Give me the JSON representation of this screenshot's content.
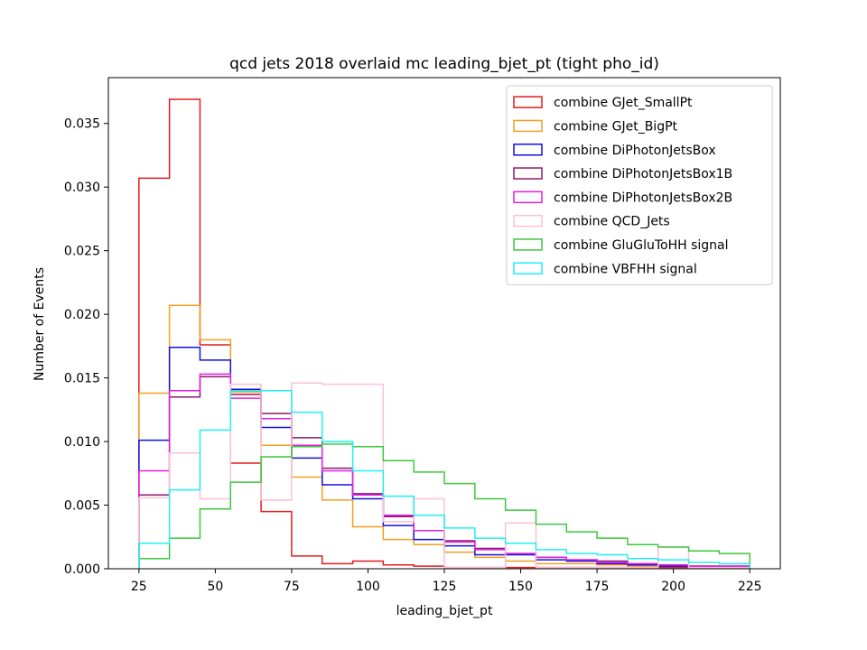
{
  "chart_data": {
    "type": "histogram-step",
    "title": "qcd jets 2018 overlaid mc leading_bjet_pt (tight pho_id)",
    "xlabel": "leading_bjet_pt",
    "ylabel": "Number of Events",
    "xlim": [
      15,
      235
    ],
    "ylim": [
      0,
      0.0386
    ],
    "xticks": [
      25,
      50,
      75,
      100,
      125,
      150,
      175,
      200,
      225
    ],
    "yticks": [
      0.0,
      0.005,
      0.01,
      0.015,
      0.02,
      0.025,
      0.03,
      0.035
    ],
    "yticks_labels": [
      "0.000",
      "0.005",
      "0.010",
      "0.015",
      "0.020",
      "0.025",
      "0.030",
      "0.035"
    ],
    "bin_edges": [
      25,
      35,
      45,
      55,
      65,
      75,
      85,
      95,
      105,
      115,
      125,
      135,
      145,
      155,
      165,
      175,
      185,
      195,
      205,
      215,
      225
    ],
    "legend_position": "top-right",
    "series": [
      {
        "name": "combine GJet_SmallPt",
        "color": "#e41a1c",
        "values": [
          0.0307,
          0.0369,
          0.0176,
          0.0083,
          0.0045,
          0.001,
          0.0004,
          0.0006,
          0.0003,
          0.0002,
          0.0001,
          0.0001,
          0.0001,
          0.0001,
          0.0001,
          0.0001,
          0.0001,
          0.0001,
          0.0001,
          0.0001
        ]
      },
      {
        "name": "combine GJet_BigPt",
        "color": "#f0a020",
        "values": [
          0.0138,
          0.0207,
          0.018,
          0.0139,
          0.0097,
          0.0072,
          0.0054,
          0.0033,
          0.0023,
          0.0019,
          0.0013,
          0.0009,
          0.0006,
          0.0004,
          0.0004,
          0.0003,
          0.0002,
          0.0002,
          0.0002,
          0.0001
        ]
      },
      {
        "name": "combine DiPhotonJetsBox",
        "color": "#1010e0",
        "values": [
          0.0101,
          0.0174,
          0.0164,
          0.0141,
          0.0111,
          0.0087,
          0.0066,
          0.0055,
          0.0034,
          0.0023,
          0.0018,
          0.0011,
          0.0011,
          0.0007,
          0.0006,
          0.0004,
          0.0003,
          0.0002,
          0.0002,
          0.0002
        ]
      },
      {
        "name": "combine DiPhotonJetsBox1B",
        "color": "#8b1a6b",
        "values": [
          0.0058,
          0.0135,
          0.0151,
          0.0137,
          0.0122,
          0.0103,
          0.0079,
          0.0059,
          0.0041,
          0.003,
          0.0022,
          0.0016,
          0.0012,
          0.0009,
          0.0007,
          0.0006,
          0.0004,
          0.0003,
          0.0002,
          0.0002
        ]
      },
      {
        "name": "combine DiPhotonJetsBox2B",
        "color": "#e020e0",
        "values": [
          0.0077,
          0.014,
          0.0153,
          0.0134,
          0.0118,
          0.0097,
          0.0077,
          0.0058,
          0.0042,
          0.003,
          0.0021,
          0.0015,
          0.0012,
          0.0009,
          0.0007,
          0.0005,
          0.0004,
          0.0003,
          0.0002,
          0.0002
        ]
      },
      {
        "name": "combine QCD_Jets",
        "color": "#f8c0d8",
        "values": [
          0.0056,
          0.0091,
          0.0055,
          0.0145,
          0.0054,
          0.0146,
          0.0145,
          0.0145,
          0.0037,
          0.0055,
          0.0001,
          0.0001,
          0.0036,
          0.0001,
          0.0001,
          0.0001,
          0.0001,
          0.0017,
          0.0001,
          0.0001
        ]
      },
      {
        "name": "combine GluGluToHH signal",
        "color": "#3cc83c",
        "values": [
          0.0008,
          0.0024,
          0.0047,
          0.0068,
          0.0088,
          0.0096,
          0.0098,
          0.0096,
          0.0085,
          0.0076,
          0.0067,
          0.0055,
          0.0046,
          0.0035,
          0.0029,
          0.0024,
          0.0019,
          0.0017,
          0.0014,
          0.0012
        ]
      },
      {
        "name": "combine VBFHH signal",
        "color": "#20f0f0",
        "values": [
          0.002,
          0.0062,
          0.0109,
          0.014,
          0.014,
          0.0123,
          0.01,
          0.0077,
          0.0057,
          0.0042,
          0.0032,
          0.0024,
          0.002,
          0.0015,
          0.0012,
          0.0011,
          0.0008,
          0.0007,
          0.0005,
          0.0004
        ]
      }
    ]
  }
}
